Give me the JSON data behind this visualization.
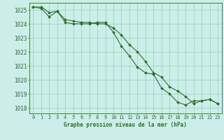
{
  "title": "Graphe pression niveau de la mer (hPa)",
  "bg_color": "#cceee8",
  "grid_color": "#99ccbb",
  "line_color": "#2d6e2d",
  "marker_color": "#2d6e2d",
  "xlim": [
    -0.5,
    23.5
  ],
  "ylim": [
    1017.6,
    1025.5
  ],
  "yticks": [
    1018,
    1019,
    1020,
    1021,
    1022,
    1023,
    1024,
    1025
  ],
  "xticks": [
    0,
    1,
    2,
    3,
    4,
    5,
    6,
    7,
    8,
    9,
    10,
    11,
    12,
    13,
    14,
    15,
    16,
    17,
    18,
    19,
    20,
    21,
    22,
    23
  ],
  "series1_x": [
    0,
    1,
    2,
    3,
    4,
    5,
    6,
    7,
    8,
    9,
    10,
    11,
    12,
    13,
    14,
    15,
    16,
    17,
    18,
    19,
    20,
    21,
    22,
    23
  ],
  "series1_y": [
    1025.2,
    1025.2,
    1024.8,
    1024.9,
    1024.3,
    1024.2,
    1024.1,
    1024.1,
    1024.0,
    1024.0,
    1023.7,
    1023.2,
    1022.5,
    1022.0,
    1021.3,
    1020.5,
    1020.2,
    1019.5,
    1019.2,
    1018.8,
    1018.3,
    1018.5,
    1018.6,
    1018.3
  ],
  "series2_x": [
    0,
    1,
    2,
    3,
    4,
    5,
    6,
    7,
    8,
    9,
    10,
    11,
    12,
    13,
    14,
    15,
    16,
    17,
    18,
    19,
    20,
    21,
    22,
    23
  ],
  "series2_y": [
    1025.2,
    1025.1,
    1024.5,
    1024.9,
    1024.1,
    1024.0,
    1024.0,
    1024.0,
    1024.1,
    1024.1,
    1023.4,
    1022.4,
    1021.7,
    1020.9,
    1020.5,
    1020.4,
    1019.4,
    1019.0,
    1018.4,
    1018.2,
    1018.5,
    1018.5,
    1018.6,
    1018.3
  ],
  "ylabel_fontsize": 5.5,
  "xlabel_fontsize": 5.0,
  "title_fontsize": 5.5
}
